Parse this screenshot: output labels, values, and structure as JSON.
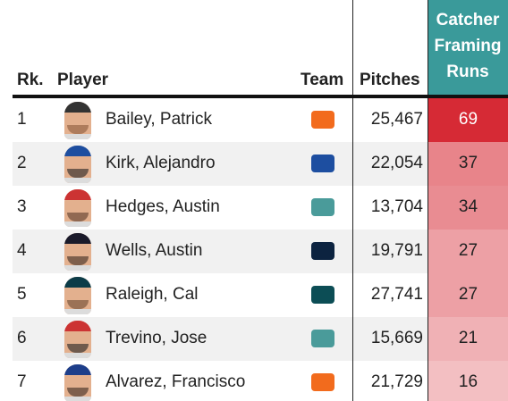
{
  "header": {
    "rank": "Rk.",
    "player": "Player",
    "team": "Team",
    "pitches": "Pitches",
    "runs": "Catcher Framing Runs"
  },
  "rows": [
    {
      "rank": 1,
      "player": "Bailey, Patrick",
      "pitches": "25,467",
      "runs": 69
    },
    {
      "rank": 2,
      "player": "Kirk, Alejandro",
      "pitches": "22,054",
      "runs": 37
    },
    {
      "rank": 3,
      "player": "Hedges, Austin",
      "pitches": "13,704",
      "runs": 34
    },
    {
      "rank": 4,
      "player": "Wells, Austin",
      "pitches": "19,791",
      "runs": 27
    },
    {
      "rank": 5,
      "player": "Raleigh, Cal",
      "pitches": "27,741",
      "runs": 27
    },
    {
      "rank": 6,
      "player": "Trevino, Jose",
      "pitches": "15,669",
      "runs": 21
    },
    {
      "rank": 7,
      "player": "Alvarez, Francisco",
      "pitches": "21,729",
      "runs": 16
    }
  ]
}
